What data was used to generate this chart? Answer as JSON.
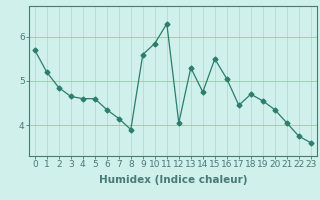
{
  "x": [
    0,
    1,
    2,
    3,
    4,
    5,
    6,
    7,
    8,
    9,
    10,
    11,
    12,
    13,
    14,
    15,
    16,
    17,
    18,
    19,
    20,
    21,
    22,
    23
  ],
  "y": [
    5.7,
    5.2,
    4.85,
    4.65,
    4.6,
    4.6,
    4.35,
    4.15,
    3.9,
    5.6,
    5.85,
    6.3,
    4.05,
    5.3,
    4.75,
    5.5,
    5.05,
    4.45,
    4.7,
    4.55,
    4.35,
    4.05,
    3.75,
    3.6
  ],
  "xlabel": "Humidex (Indice chaleur)",
  "ylabel": "",
  "xlim": [
    -0.5,
    23.5
  ],
  "ylim": [
    3.3,
    6.7
  ],
  "yticks": [
    4,
    5,
    6
  ],
  "xticks": [
    0,
    1,
    2,
    3,
    4,
    5,
    6,
    7,
    8,
    9,
    10,
    11,
    12,
    13,
    14,
    15,
    16,
    17,
    18,
    19,
    20,
    21,
    22,
    23
  ],
  "line_color": "#2d7d6d",
  "marker": "D",
  "marker_size": 2.5,
  "bg_color": "#cff0eb",
  "grid_color_h": "#e8a0a0",
  "grid_color_v": "#b8d8d4",
  "axes_color": "#4a7a74",
  "xlabel_fontsize": 7.5,
  "tick_fontsize": 6.5
}
